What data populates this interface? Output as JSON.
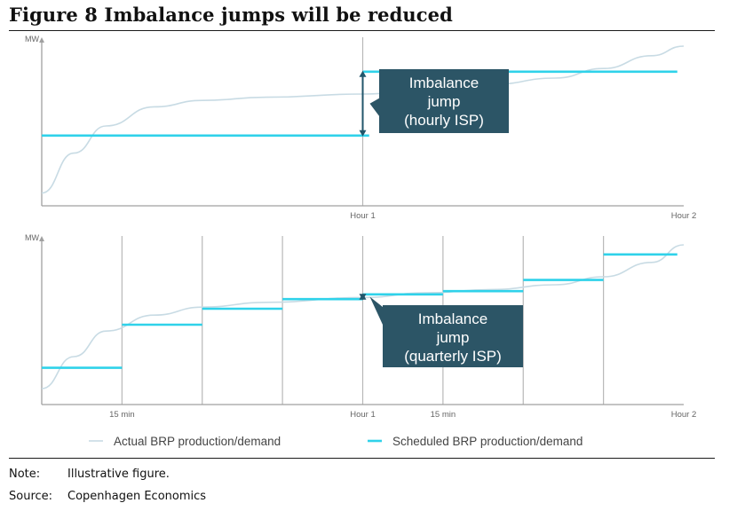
{
  "figure": {
    "title": "Figure 8 Imbalance jumps will be reduced",
    "note_label": "Note:",
    "note_text": "Illustrative figure.",
    "source_label": "Source:",
    "source_text": "Copenhagen Economics"
  },
  "colors": {
    "scheduled": "#2fd2ea",
    "actual": "#c8dbe4",
    "axis": "#a0a0a0",
    "callout_bg": "#2c5566",
    "arrow": "#22566b",
    "callout_text": "#ffffff"
  },
  "chart_data": [
    {
      "type": "line",
      "panel": "top",
      "ylabel": "MW",
      "tick_labels": [
        "Hour 1",
        "Hour 2"
      ],
      "xlim": [
        0,
        2
      ],
      "ylim": [
        0,
        1
      ],
      "series": [
        {
          "name": "Actual BRP production/demand",
          "style": "curve",
          "x": [
            0,
            0.1,
            0.2,
            0.35,
            0.5,
            0.7,
            1.0,
            1.2,
            1.4,
            1.6,
            1.75,
            1.9,
            2.0
          ],
          "y": [
            0.08,
            0.33,
            0.5,
            0.62,
            0.66,
            0.68,
            0.7,
            0.73,
            0.76,
            0.8,
            0.86,
            0.94,
            1.0
          ]
        },
        {
          "name": "Scheduled BRP production/demand",
          "style": "step",
          "segments": [
            {
              "x0": 0,
              "x1": 1.02,
              "y": 0.44
            },
            {
              "x0": 1.0,
              "x1": 1.98,
              "y": 0.84
            }
          ]
        }
      ],
      "annotation": {
        "lines": [
          "Imbalance",
          "jump",
          "(hourly ISP)"
        ],
        "x": 1.0,
        "y_from": 0.44,
        "y_to": 0.84
      }
    },
    {
      "type": "line",
      "panel": "bottom",
      "ylabel": "MW",
      "tick_labels": [
        "15 min",
        "Hour 1",
        "15 min",
        "Hour 2"
      ],
      "tick_positions": [
        0.25,
        1.0,
        1.25,
        2.0
      ],
      "gridlines_x": [
        0.25,
        0.5,
        0.75,
        1.0,
        1.25,
        1.5,
        1.75
      ],
      "xlim": [
        0,
        2
      ],
      "ylim": [
        0,
        1
      ],
      "series": [
        {
          "name": "Actual BRP production/demand",
          "style": "curve",
          "x": [
            0,
            0.1,
            0.2,
            0.35,
            0.5,
            0.7,
            1.0,
            1.2,
            1.4,
            1.6,
            1.75,
            1.9,
            2.0
          ],
          "y": [
            0.1,
            0.3,
            0.46,
            0.56,
            0.61,
            0.64,
            0.67,
            0.7,
            0.72,
            0.75,
            0.8,
            0.89,
            1.0
          ]
        },
        {
          "name": "Scheduled BRP production/demand",
          "style": "step",
          "segments": [
            {
              "x0": 0,
              "x1": 0.25,
              "y": 0.23
            },
            {
              "x0": 0.25,
              "x1": 0.5,
              "y": 0.5
            },
            {
              "x0": 0.5,
              "x1": 0.75,
              "y": 0.6
            },
            {
              "x0": 0.75,
              "x1": 1.0,
              "y": 0.66
            },
            {
              "x0": 1.0,
              "x1": 1.25,
              "y": 0.69
            },
            {
              "x0": 1.25,
              "x1": 1.5,
              "y": 0.71
            },
            {
              "x0": 1.5,
              "x1": 1.75,
              "y": 0.78
            },
            {
              "x0": 1.75,
              "x1": 1.98,
              "y": 0.94
            }
          ]
        }
      ],
      "annotation": {
        "lines": [
          "Imbalance",
          "jump",
          "(quarterly ISP)"
        ],
        "x": 1.0,
        "y_from": 0.66,
        "y_to": 0.69
      }
    }
  ],
  "legend": {
    "actual": "Actual BRP production/demand",
    "scheduled": "Scheduled BRP production/demand"
  }
}
